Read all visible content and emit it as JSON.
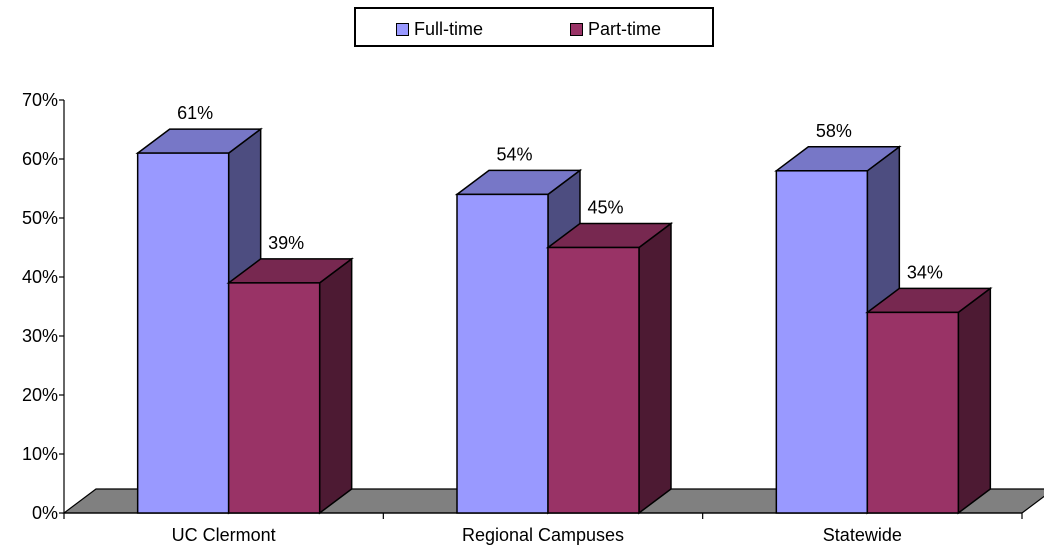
{
  "legend": [
    {
      "label": "Full-time",
      "color": "#9999ff"
    },
    {
      "label": "Part-time",
      "color": "#993366"
    }
  ],
  "chart_data": {
    "type": "bar",
    "title": "",
    "xlabel": "",
    "ylabel": "",
    "categories": [
      "UC Clermont",
      "Regional Campuses",
      "Statewide"
    ],
    "series": [
      {
        "name": "Full-time",
        "values": [
          61,
          54,
          58
        ],
        "labels": [
          "61%",
          "54%",
          "58%"
        ],
        "color": "#9999ff",
        "side_color": "#4d4d80"
      },
      {
        "name": "Part-time",
        "values": [
          39,
          45,
          34
        ],
        "labels": [
          "39%",
          "45%",
          "34%"
        ],
        "color": "#993366",
        "side_color": "#4d1a33"
      }
    ],
    "y_ticks": [
      "0%",
      "10%",
      "20%",
      "30%",
      "40%",
      "50%",
      "60%",
      "70%"
    ],
    "ylim": [
      0,
      70
    ],
    "unit": "%",
    "grid": false,
    "three_d": true,
    "floor_color": "#808080",
    "legend_position": "top-center"
  }
}
